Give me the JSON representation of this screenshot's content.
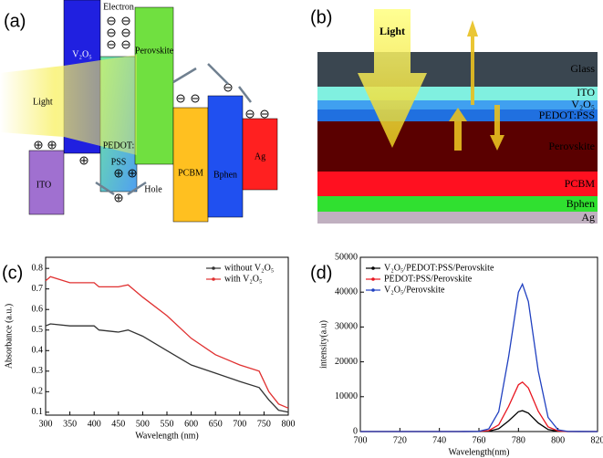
{
  "panel_a": {
    "panel_label": "(a)",
    "labels": {
      "v2o5": "V₂O₅",
      "electron": "Electron",
      "perovskite": "Perovskite",
      "light": "Light",
      "pedot": "PEDOT:",
      "pss": "PSS",
      "ito": "ITO",
      "pcbm": "PCBM",
      "bphen": "Bphen",
      "ag": "Ag",
      "hole": "Hole"
    }
  },
  "panel_b": {
    "panel_label": "(b)",
    "light": "Light",
    "layers": [
      "Glass",
      "ITO",
      "V₂O₅",
      "PEDOT:PSS",
      "Perovskite",
      "PCBM",
      "Bphen",
      "Ag"
    ]
  },
  "chart_data": [
    {
      "type": "line",
      "panel_label": "(c)",
      "x_label": "Wavelength (nm)",
      "y_label": "Absorbance (a.u.)",
      "x": [
        300,
        310,
        350,
        400,
        410,
        450,
        470,
        500,
        550,
        600,
        650,
        700,
        740,
        760,
        780,
        800
      ],
      "series": [
        {
          "name": "without V₂O₅",
          "color": "#333333",
          "values": [
            0.52,
            0.53,
            0.52,
            0.52,
            0.5,
            0.49,
            0.5,
            0.47,
            0.4,
            0.33,
            0.29,
            0.25,
            0.22,
            0.16,
            0.11,
            0.1
          ]
        },
        {
          "name": "with V₂O₅",
          "color": "#e03030",
          "values": [
            0.74,
            0.76,
            0.73,
            0.73,
            0.71,
            0.71,
            0.72,
            0.66,
            0.57,
            0.46,
            0.38,
            0.33,
            0.3,
            0.2,
            0.14,
            0.12
          ]
        }
      ],
      "xlim": [
        300,
        800
      ],
      "xticks": [
        300,
        350,
        400,
        450,
        500,
        550,
        600,
        650,
        700,
        750,
        800
      ],
      "ylim": [
        0.086,
        0.854
      ],
      "yticks": [
        0.1,
        0.2,
        0.3,
        0.4,
        0.5,
        0.6,
        0.7,
        0.8
      ],
      "legend": "upper right"
    },
    {
      "type": "line",
      "panel_label": "(d)",
      "x_label": "Wavelength(nm)",
      "y_label": "intensity(a.u)",
      "x": [
        700,
        750,
        760,
        765,
        770,
        775,
        780,
        782,
        785,
        790,
        795,
        800,
        805,
        820
      ],
      "series": [
        {
          "name": "V₂O₅/PEDOT:PSS/Perovskite",
          "color": "#000000",
          "values": [
            0,
            0,
            10,
            110,
            810,
            3040,
            5680,
            6000,
            5290,
            2470,
            580,
            70,
            5,
            0
          ]
        },
        {
          "name": "PEDOT:PSS/Perovskite",
          "color": "#e8141e",
          "values": [
            0,
            0,
            20,
            260,
            1920,
            7190,
            13430,
            14200,
            12520,
            5840,
            1360,
            160,
            10,
            0
          ]
        },
        {
          "name": "V₂O₅/Perovskite",
          "color": "#2040c0",
          "values": [
            0,
            0,
            50,
            760,
            5700,
            21400,
            40000,
            42300,
            37300,
            17400,
            4060,
            470,
            25,
            0
          ]
        }
      ],
      "xlim": [
        700,
        820
      ],
      "xticks": [
        700,
        720,
        740,
        760,
        780,
        800,
        820
      ],
      "ylim": [
        0,
        50000
      ],
      "yticks": [
        0,
        10000,
        20000,
        30000,
        40000,
        50000
      ],
      "legend": "upper left"
    }
  ]
}
